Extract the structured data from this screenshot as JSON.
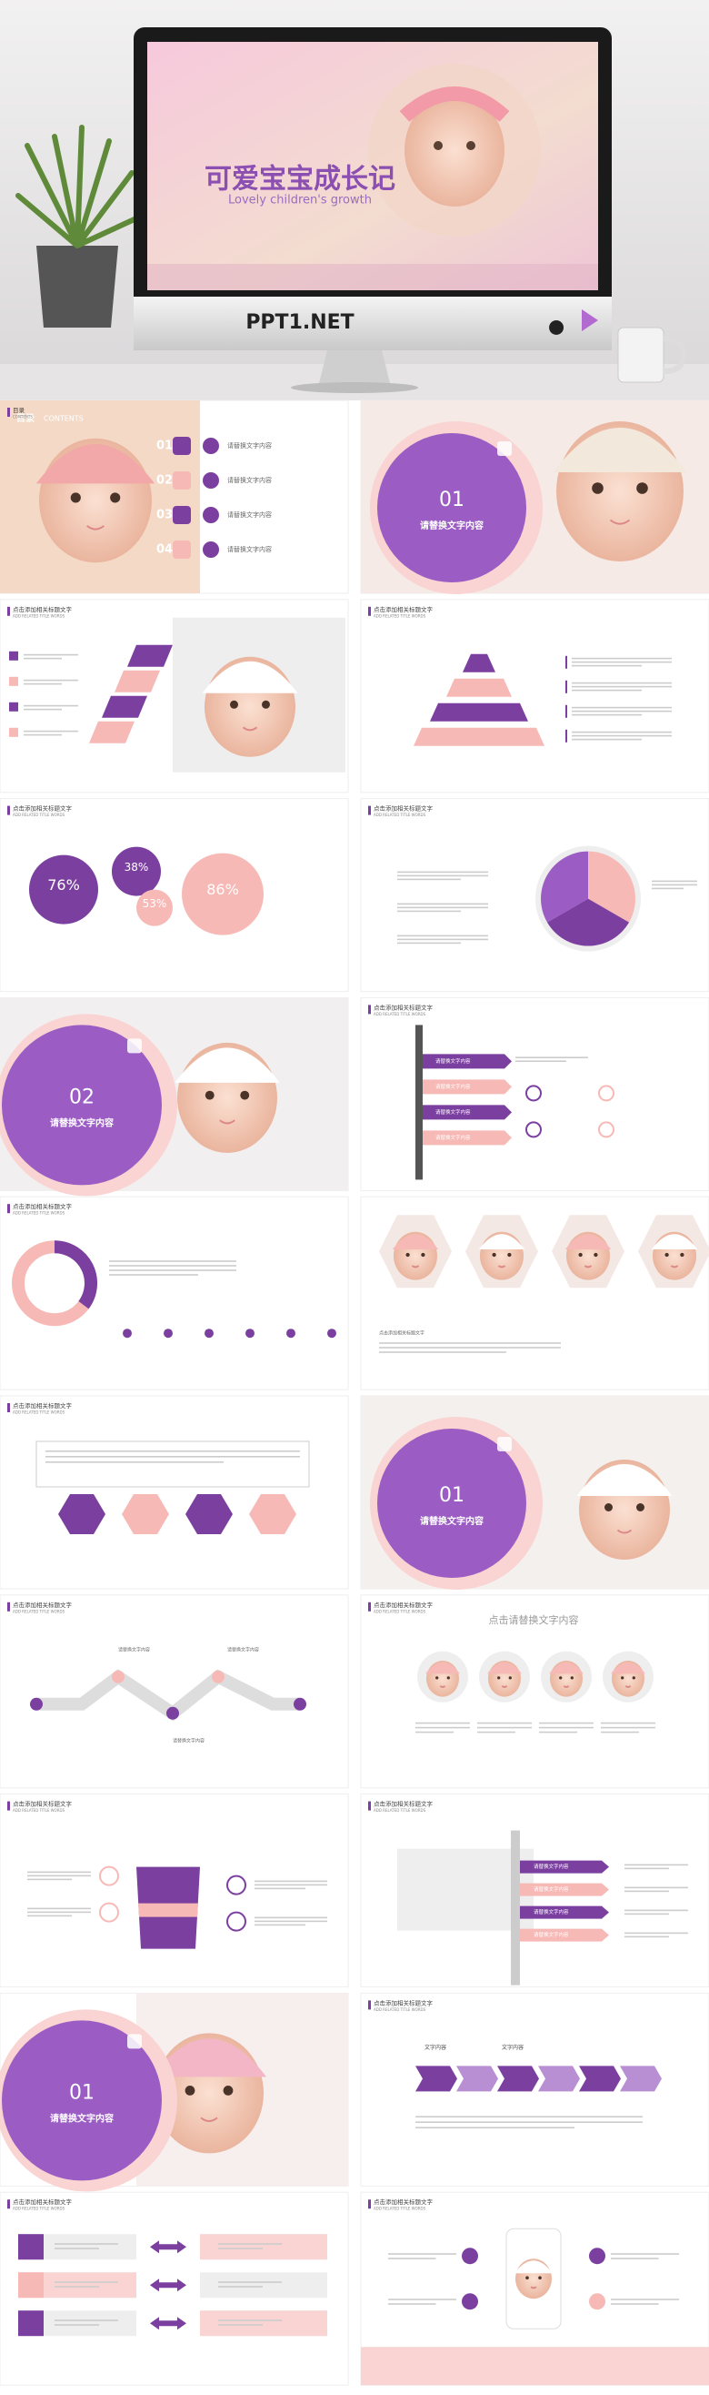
{
  "header": {
    "title": "可爱宝宝成长记",
    "subtitle": "Lovely children's growth",
    "brand": "PPT1.NET"
  },
  "slides": [
    {
      "title": "目录",
      "subtitle": "CONTENTS",
      "numbers": [
        "01",
        "02",
        "03",
        "04"
      ],
      "items": [
        "请替换文字内容",
        "请替换文字内容",
        "请替换文字内容",
        "请替换文字内容"
      ]
    },
    {
      "number": "01",
      "heading": "请替换文字内容"
    },
    {
      "title": "点击添加相关标题文字",
      "subtitle": "ADD RELATED TITLE WORDS"
    },
    {
      "title": "点击添加相关标题文字",
      "subtitle": "ADD RELATED TITLE WORDS"
    },
    {
      "title": "点击添加相关标题文字",
      "subtitle": "ADD RELATED TITLE WORDS",
      "stats": [
        "76%",
        "38%",
        "53%",
        "86%"
      ]
    },
    {
      "title": "点击添加相关标题文字",
      "subtitle": "ADD RELATED TITLE WORDS"
    },
    {
      "number": "02",
      "heading": "请替换文字内容"
    },
    {
      "title": "点击添加相关标题文字",
      "subtitle": "ADD RELATED TITLE WORDS",
      "items": [
        "请替换文字内容",
        "请替换文字内容",
        "请替换文字内容",
        "请替换文字内容"
      ]
    },
    {
      "title": "点击添加相关标题文字",
      "subtitle": "ADD RELATED TITLE WORDS"
    },
    {
      "caption": "点击添加相关标题文字"
    },
    {
      "title": "点击添加相关标题文字",
      "subtitle": "ADD RELATED TITLE WORDS"
    },
    {
      "number": "01",
      "heading": "请替换文字内容"
    },
    {
      "title": "点击添加相关标题文字",
      "subtitle": "ADD RELATED TITLE WORDS",
      "items": [
        "请替换文字内容",
        "请替换文字内容",
        "请替换文字内容"
      ]
    },
    {
      "title": "点击添加相关标题文字",
      "subtitle": "ADD RELATED TITLE WORDS",
      "heading": "点击请替换文字内容"
    },
    {
      "title": "点击添加相关标题文字",
      "subtitle": "ADD RELATED TITLE WORDS"
    },
    {
      "title": "点击添加相关标题文字",
      "subtitle": "ADD RELATED TITLE WORDS",
      "items": [
        "请替换文字内容",
        "请替换文字内容",
        "请替换文字内容",
        "请替换文字内容"
      ]
    },
    {
      "number": "01",
      "heading": "请替换文字内容"
    },
    {
      "title": "点击添加相关标题文字",
      "subtitle": "ADD RELATED TITLE WORDS",
      "labels": [
        "文字内容",
        "文字内容"
      ]
    },
    {
      "title": "点击添加相关标题文字",
      "subtitle": "ADD RELATED TITLE WORDS"
    },
    {
      "title": "点击添加相关标题文字",
      "subtitle": "ADD RELATED TITLE WORDS"
    }
  ]
}
